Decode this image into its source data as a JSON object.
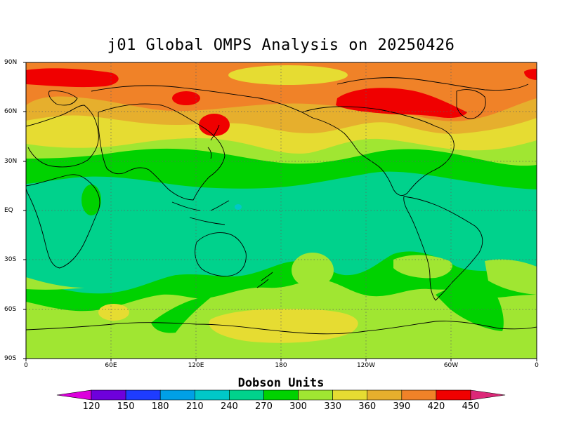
{
  "title": "j01 Global OMPS Analysis on 20250426",
  "map": {
    "lat_labels": [
      "90N",
      "60N",
      "30N",
      "EQ",
      "30S",
      "60S",
      "90S"
    ],
    "lon_labels": [
      "0",
      "60E",
      "120E",
      "180",
      "120W",
      "60W",
      "0"
    ],
    "region_colors": {
      "c270": "#00d28c",
      "c300": "#00d200",
      "c330": "#a0e632",
      "c360": "#e6dc32",
      "c390": "#e6af2d",
      "c420": "#f08228",
      "c450": "#f00000"
    }
  },
  "colorbar": {
    "title": "Dobson Units",
    "ticks": [
      "120",
      "150",
      "180",
      "210",
      "240",
      "270",
      "300",
      "330",
      "360",
      "390",
      "420",
      "450"
    ],
    "under_color": "#dc00dc",
    "over_color": "#dc2878",
    "colors": [
      "#a000c8",
      "#6e00dc",
      "#1e3cff",
      "#00a0e6",
      "#00c8c8",
      "#00d28c",
      "#00d200",
      "#a0e632",
      "#e6dc32",
      "#e6af2d",
      "#f08228",
      "#f00000"
    ]
  }
}
